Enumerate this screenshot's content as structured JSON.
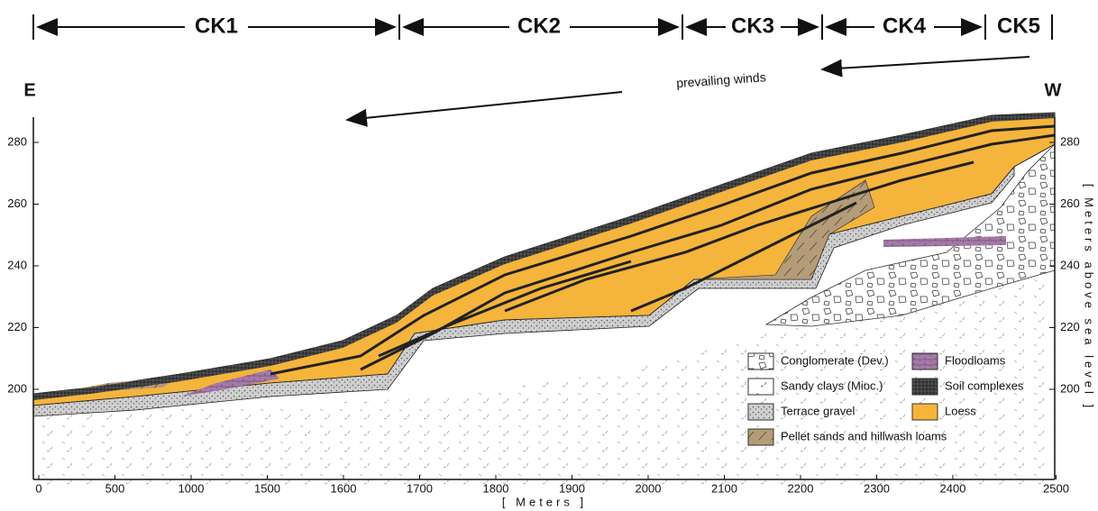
{
  "sections": [
    "CK1",
    "CK2",
    "CK3",
    "CK4",
    "CK5"
  ],
  "east": "E",
  "west": "W",
  "wind_label": "prevailing winds",
  "x_axis": {
    "ticks": [
      0,
      500,
      1000,
      1500,
      1600,
      1700,
      1800,
      1900,
      2000,
      2100,
      2200,
      2300,
      2400,
      2500
    ],
    "label": "[ Meters ]"
  },
  "y_axis": {
    "ticks": [
      280,
      260,
      240,
      220,
      200
    ],
    "label": "[ Meters above sea level ]"
  },
  "legend": [
    "Conglomerate (Dev.)",
    "Floodloams",
    "Sandy clays (Mioc.)",
    "Soil complexes",
    "Terrace gravel",
    "Loess",
    "Pellet sands and hillwash loams"
  ]
}
